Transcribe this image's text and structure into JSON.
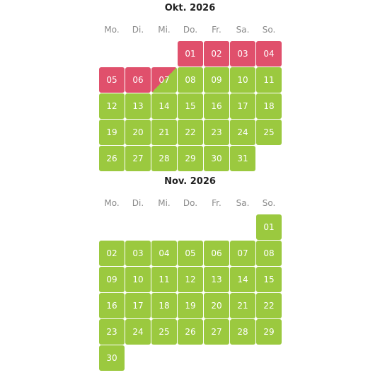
{
  "colors": {
    "free": "#9bc93f",
    "booked": "#e0506c",
    "text": "#ffffff",
    "weekday": "#8a8a8a"
  },
  "weekdays": [
    "Mo.",
    "Di.",
    "Mi.",
    "Do.",
    "Fr.",
    "Sa.",
    "So."
  ],
  "months": [
    {
      "title": "Okt. 2026",
      "days": [
        {
          "label": "01",
          "status": "booked"
        },
        {
          "label": "02",
          "status": "booked"
        },
        {
          "label": "03",
          "status": "booked"
        },
        {
          "label": "04",
          "status": "booked"
        },
        {
          "label": "05",
          "status": "booked"
        },
        {
          "label": "06",
          "status": "booked"
        },
        {
          "label": "07",
          "status": "changeover"
        },
        {
          "label": "08",
          "status": "free"
        },
        {
          "label": "09",
          "status": "free"
        },
        {
          "label": "10",
          "status": "free"
        },
        {
          "label": "11",
          "status": "free"
        },
        {
          "label": "12",
          "status": "free"
        },
        {
          "label": "13",
          "status": "free"
        },
        {
          "label": "14",
          "status": "free"
        },
        {
          "label": "15",
          "status": "free"
        },
        {
          "label": "16",
          "status": "free"
        },
        {
          "label": "17",
          "status": "free"
        },
        {
          "label": "18",
          "status": "free"
        },
        {
          "label": "19",
          "status": "free"
        },
        {
          "label": "20",
          "status": "free"
        },
        {
          "label": "21",
          "status": "free"
        },
        {
          "label": "22",
          "status": "free"
        },
        {
          "label": "23",
          "status": "free"
        },
        {
          "label": "24",
          "status": "free"
        },
        {
          "label": "25",
          "status": "free"
        },
        {
          "label": "26",
          "status": "free"
        },
        {
          "label": "27",
          "status": "free"
        },
        {
          "label": "28",
          "status": "free"
        },
        {
          "label": "29",
          "status": "free"
        },
        {
          "label": "30",
          "status": "free"
        },
        {
          "label": "31",
          "status": "free"
        }
      ]
    },
    {
      "title": "Nov. 2026",
      "days": [
        {
          "label": "01",
          "status": "free"
        },
        {
          "label": "02",
          "status": "free"
        },
        {
          "label": "03",
          "status": "free"
        },
        {
          "label": "04",
          "status": "free"
        },
        {
          "label": "05",
          "status": "free"
        },
        {
          "label": "06",
          "status": "free"
        },
        {
          "label": "07",
          "status": "free"
        },
        {
          "label": "08",
          "status": "free"
        },
        {
          "label": "09",
          "status": "free"
        },
        {
          "label": "10",
          "status": "free"
        },
        {
          "label": "11",
          "status": "free"
        },
        {
          "label": "12",
          "status": "free"
        },
        {
          "label": "13",
          "status": "free"
        },
        {
          "label": "14",
          "status": "free"
        },
        {
          "label": "15",
          "status": "free"
        },
        {
          "label": "16",
          "status": "free"
        },
        {
          "label": "17",
          "status": "free"
        },
        {
          "label": "18",
          "status": "free"
        },
        {
          "label": "19",
          "status": "free"
        },
        {
          "label": "20",
          "status": "free"
        },
        {
          "label": "21",
          "status": "free"
        },
        {
          "label": "22",
          "status": "free"
        },
        {
          "label": "23",
          "status": "free"
        },
        {
          "label": "24",
          "status": "free"
        },
        {
          "label": "25",
          "status": "free"
        },
        {
          "label": "26",
          "status": "free"
        },
        {
          "label": "27",
          "status": "free"
        },
        {
          "label": "28",
          "status": "free"
        },
        {
          "label": "29",
          "status": "free"
        },
        {
          "label": "30",
          "status": "free"
        }
      ]
    }
  ]
}
